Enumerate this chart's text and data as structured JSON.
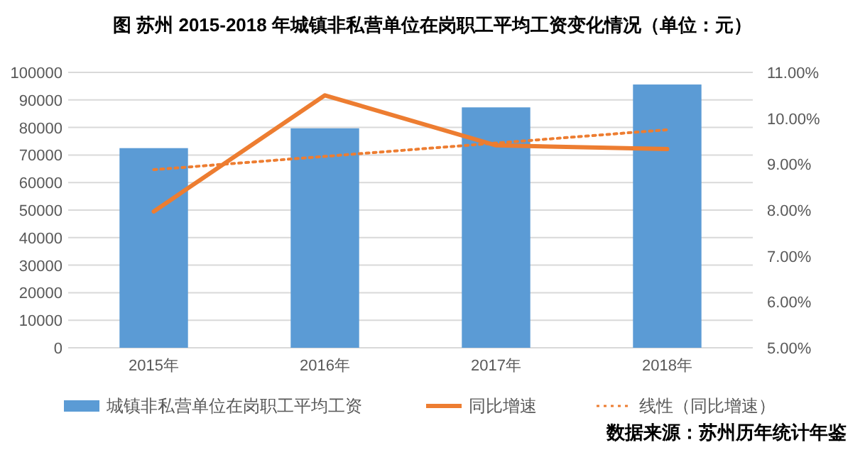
{
  "chart_data": {
    "type": "bar",
    "title": "图 苏州 2015-2018 年城镇非私营单位在岗职工平均工资变化情况（单位：元）",
    "categories": [
      "2015年",
      "2016年",
      "2017年",
      "2018年"
    ],
    "series": [
      {
        "name": "城镇非私营单位在岗职工平均工资",
        "color": "#5b9bd5",
        "values": [
          72500,
          79700,
          87300,
          95600
        ]
      },
      {
        "name": "同比增速",
        "type": "line",
        "axis": "y2",
        "color": "#ed7d31",
        "line_style": "solid",
        "values": [
          7.97,
          10.5,
          9.41,
          9.33
        ]
      },
      {
        "name": "线性（同比增速）",
        "type": "line",
        "axis": "y2",
        "color": "#ed7d31",
        "line_style": "dotted",
        "values": [
          8.88,
          9.17,
          9.46,
          9.75
        ]
      }
    ],
    "ylim": [
      0,
      100000
    ],
    "yticks": [
      0,
      10000,
      20000,
      30000,
      40000,
      50000,
      60000,
      70000,
      80000,
      90000,
      100000
    ],
    "y2lim": [
      5,
      11
    ],
    "y2ticks": [
      {
        "value": 5,
        "label": "5.00%"
      },
      {
        "value": 6,
        "label": "6.00%"
      },
      {
        "value": 7,
        "label": "7.00%"
      },
      {
        "value": 8,
        "label": "8.00%"
      },
      {
        "value": 9,
        "label": "9.00%"
      },
      {
        "value": 10,
        "label": "10.00%"
      },
      {
        "value": 11,
        "label": "11.00%"
      }
    ],
    "grid": "y",
    "legend": "bottom",
    "annotations": [
      "数据来源：苏州历年统计年鉴"
    ]
  }
}
